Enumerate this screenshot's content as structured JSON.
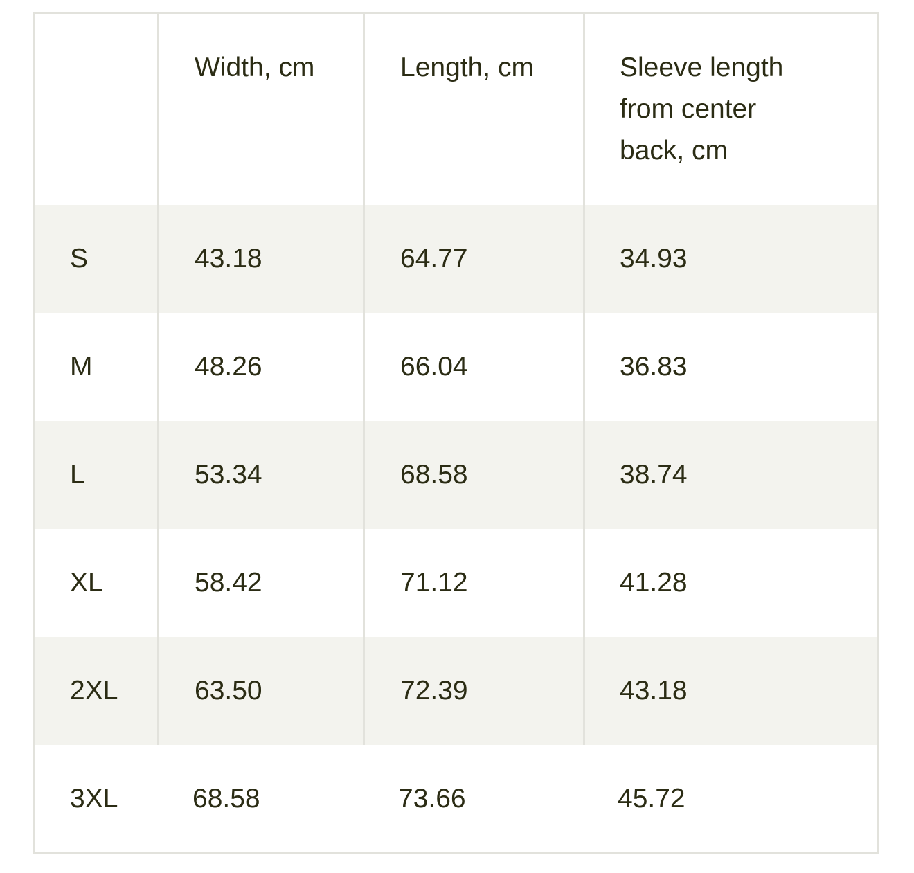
{
  "table": {
    "headers": [
      "",
      "Width, cm",
      "Length, cm",
      "Sleeve length from center back, cm"
    ],
    "rows": [
      [
        "S",
        "43.18",
        "64.77",
        "34.93"
      ],
      [
        "M",
        "48.26",
        "66.04",
        "36.83"
      ],
      [
        "L",
        "53.34",
        "68.58",
        "38.74"
      ],
      [
        "XL",
        "58.42",
        "71.12",
        "41.28"
      ],
      [
        "2XL",
        "63.50",
        "72.39",
        "43.18"
      ],
      [
        "3XL",
        "68.58",
        "73.66",
        "45.72"
      ]
    ]
  },
  "colors": {
    "text": "#2b2c14",
    "stripe": "#f3f3ee",
    "border": "#e2e2dc"
  }
}
